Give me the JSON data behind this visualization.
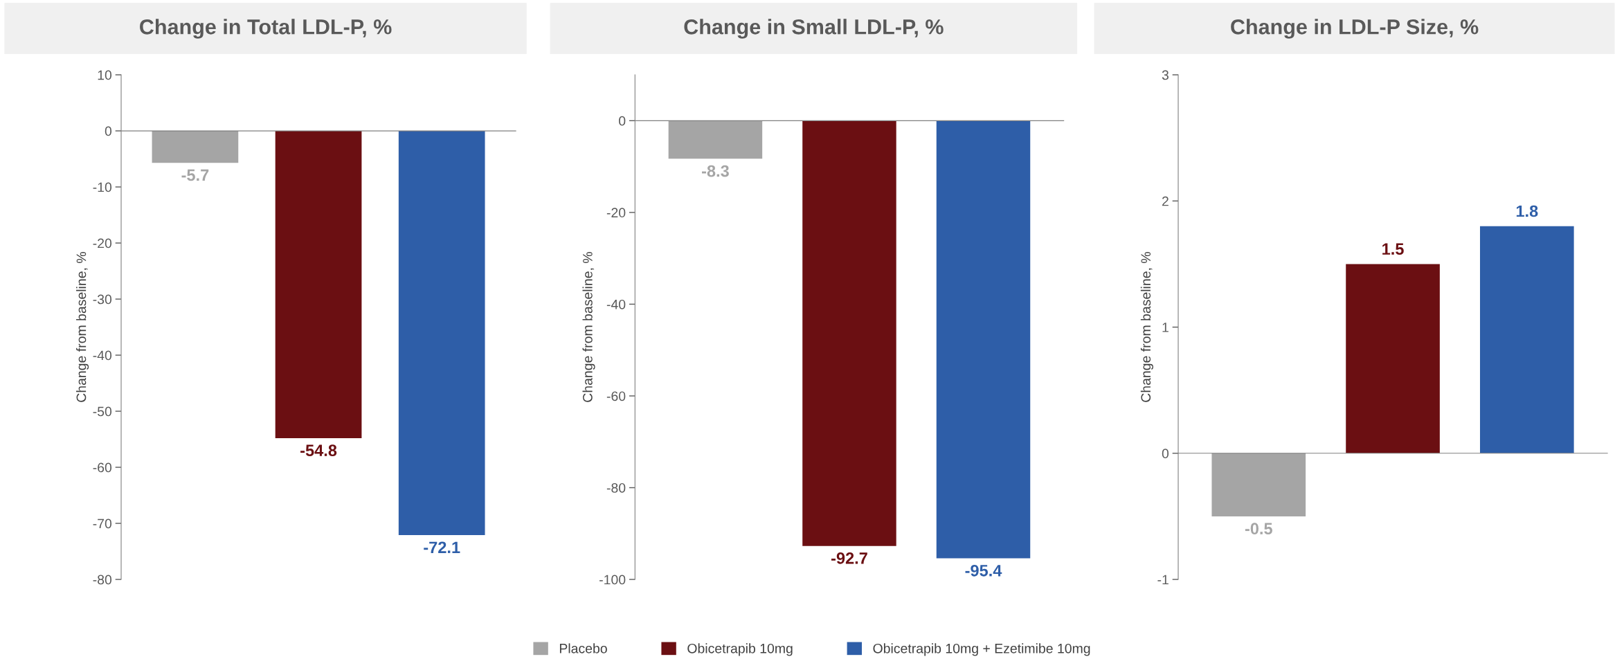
{
  "chart_data": [
    {
      "type": "bar",
      "title": "Change in Total LDL-P, %",
      "ylabel": "Change from baseline, %",
      "categories": [
        null
      ],
      "ylim": [
        -80,
        10
      ],
      "yticks": [
        -80,
        -70,
        -60,
        -50,
        -40,
        -30,
        -20,
        -10,
        0,
        10
      ],
      "data_labels": true,
      "legend": "bottom",
      "series": [
        {
          "name": "Placebo",
          "color": "#a5a5a5",
          "values": [
            -5.7
          ]
        },
        {
          "name": "Obicetrapib 10mg",
          "color": "#6b0f12",
          "values": [
            -54.8
          ]
        },
        {
          "name": "Obicetrapib 10mg + Ezetimibe 10mg",
          "color": "#2e5ea8",
          "values": [
            -72.1
          ]
        }
      ]
    },
    {
      "type": "bar",
      "title": "Change in Small LDL-P, %",
      "ylabel": "Change from baseline, %",
      "categories": [
        null
      ],
      "ylim": [
        -100,
        10
      ],
      "yticks": [
        -100,
        -80,
        -60,
        -40,
        -20,
        0
      ],
      "data_labels": true,
      "series": [
        {
          "color": "#a5a5a5",
          "values": [
            -8.3
          ]
        },
        {
          "color": "#6b0f12",
          "values": [
            -92.7
          ]
        },
        {
          "color": "#2e5ea8",
          "values": [
            -95.4
          ]
        }
      ]
    },
    {
      "type": "bar",
      "title": "Change in LDL-P Size, %",
      "ylabel": "Change from baseline, %",
      "categories": [
        null
      ],
      "ylim": [
        -1,
        3
      ],
      "yticks": [
        -1,
        0,
        1,
        2,
        3
      ],
      "data_labels": true,
      "series": [
        {
          "color": "#a5a5a5",
          "values": [
            -0.5
          ]
        },
        {
          "color": "#6b0f12",
          "values": [
            1.5
          ]
        },
        {
          "color": "#2e5ea8",
          "values": [
            1.8
          ]
        }
      ]
    }
  ]
}
